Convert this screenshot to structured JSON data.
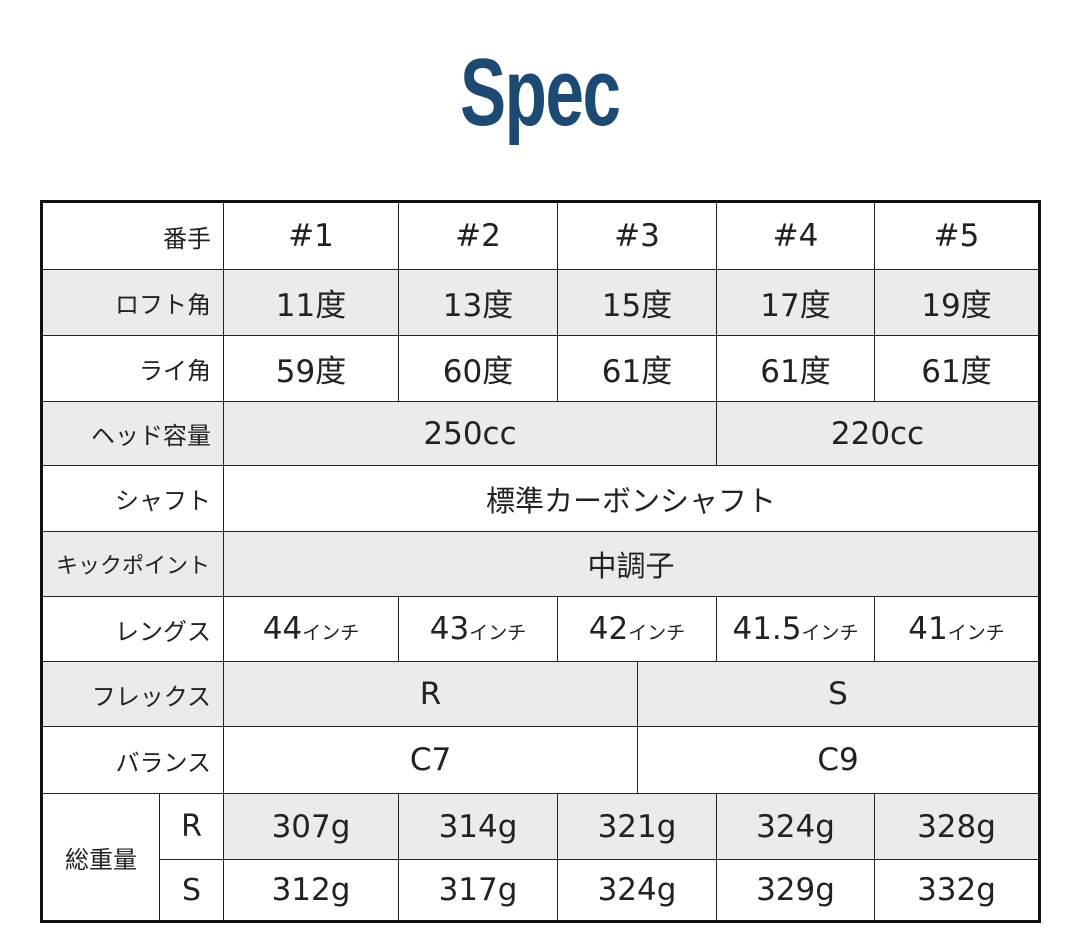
{
  "title": "Spec",
  "colors": {
    "title": "#1d4a72",
    "shaded_row": "#ebebeb",
    "border": "#222222"
  },
  "table": {
    "header": {
      "label": "番手",
      "cols": [
        "#1",
        "#2",
        "#3",
        "#4",
        "#5"
      ]
    },
    "loft": {
      "label": "ロフト角",
      "values": [
        "11度",
        "13度",
        "15度",
        "17度",
        "19度"
      ]
    },
    "lie": {
      "label": "ライ角",
      "values": [
        "59度",
        "60度",
        "61度",
        "61度",
        "61度"
      ]
    },
    "head_volume": {
      "label": "ヘッド容量",
      "values": [
        "250cc",
        "220cc"
      ]
    },
    "shaft": {
      "label": "シャフト",
      "value": "標準カーボンシャフト"
    },
    "kick_point": {
      "label": "キックポイント",
      "value": "中調子"
    },
    "length": {
      "label": "レングス",
      "unit": "インチ",
      "values": [
        "44",
        "43",
        "42",
        "41.5",
        "41"
      ]
    },
    "flex": {
      "label": "フレックス",
      "values": [
        "R",
        "S"
      ]
    },
    "balance": {
      "label": "バランス",
      "values": [
        "C7",
        "C9"
      ]
    },
    "weight": {
      "label": "総重量",
      "rows": [
        {
          "flex": "R",
          "values": [
            "307g",
            "314g",
            "321g",
            "324g",
            "328g"
          ]
        },
        {
          "flex": "S",
          "values": [
            "312g",
            "317g",
            "324g",
            "329g",
            "332g"
          ]
        }
      ]
    }
  }
}
